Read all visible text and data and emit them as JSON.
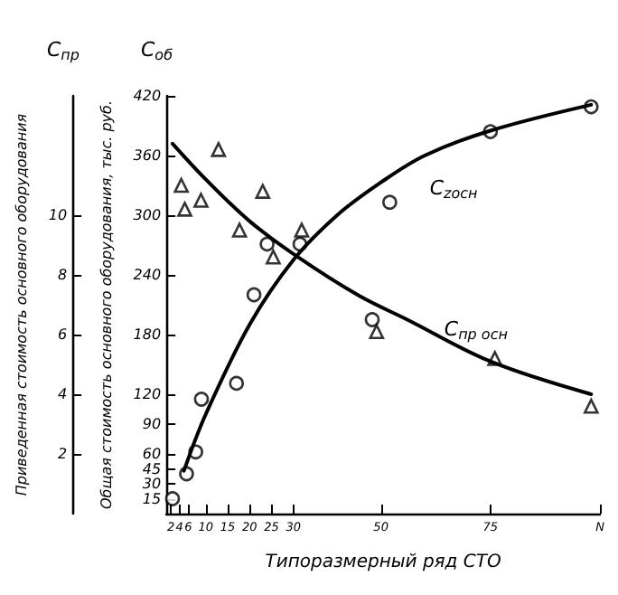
{
  "chart_data": {
    "type": "scatter",
    "xlabel": "Типоразмерный ряд СТО",
    "ylabel": "Общая стоимость основного оборудования, тыс. руб.",
    "y2label": "Приведенная стоимость основного оборудования",
    "annotations": [
      "C$_{пр}$",
      "C$_{об}$"
    ],
    "xlim": [
      1,
      100
    ],
    "xticks": [
      2,
      4,
      6,
      10,
      15,
      20,
      25,
      30,
      50,
      75,
      {
        "value": 100,
        "label": "N"
      }
    ],
    "ylim": [
      0,
      420
    ],
    "yticks": [
      15,
      30,
      45,
      60,
      90,
      120,
      180,
      240,
      300,
      360,
      420
    ],
    "y2lim": [
      0,
      14
    ],
    "y2ticks": [
      2,
      4,
      6,
      8,
      10
    ],
    "grid": false,
    "series": [
      {
        "marker": "circle",
        "color": "#000000",
        "x": [
          2.4,
          5.6,
          7.7,
          9,
          17,
          21,
          24,
          31.5,
          48,
          52,
          75,
          98
        ],
        "values": [
          15,
          40,
          62,
          115,
          131,
          220,
          271,
          271,
          195,
          313,
          384,
          409
        ]
      },
      {
        "marker": "triangle",
        "color": "#000000",
        "axis": "y2",
        "x": [
          4.4,
          5.2,
          8.9,
          12.9,
          17.7,
          23,
          25.4,
          31.9,
          49,
          76,
          98
        ],
        "values": [
          11.0,
          10.2,
          10.5,
          12.2,
          9.5,
          10.8,
          8.6,
          9.5,
          6.1,
          5.2,
          3.6
        ]
      },
      {
        "type": "line",
        "name": "C$_{zосн}$",
        "marker": "none",
        "line_style": "solid",
        "color": "#000000",
        "x": [
          5,
          10,
          20,
          30,
          40,
          50,
          60,
          75,
          98
        ],
        "values": [
          43,
          100,
          190,
          255,
          300,
          333,
          360,
          385,
          411
        ]
      },
      {
        "type": "line",
        "name": "C$_{пр осн}$",
        "marker": "none",
        "line_style": "solid",
        "color": "#000000",
        "axis": "y2",
        "x": [
          2.4,
          10,
          20,
          31,
          45,
          56,
          75,
          98
        ],
        "values": [
          12.4,
          11.2,
          9.8,
          8.6,
          7.3,
          6.5,
          5.1,
          4.0
        ]
      }
    ]
  }
}
